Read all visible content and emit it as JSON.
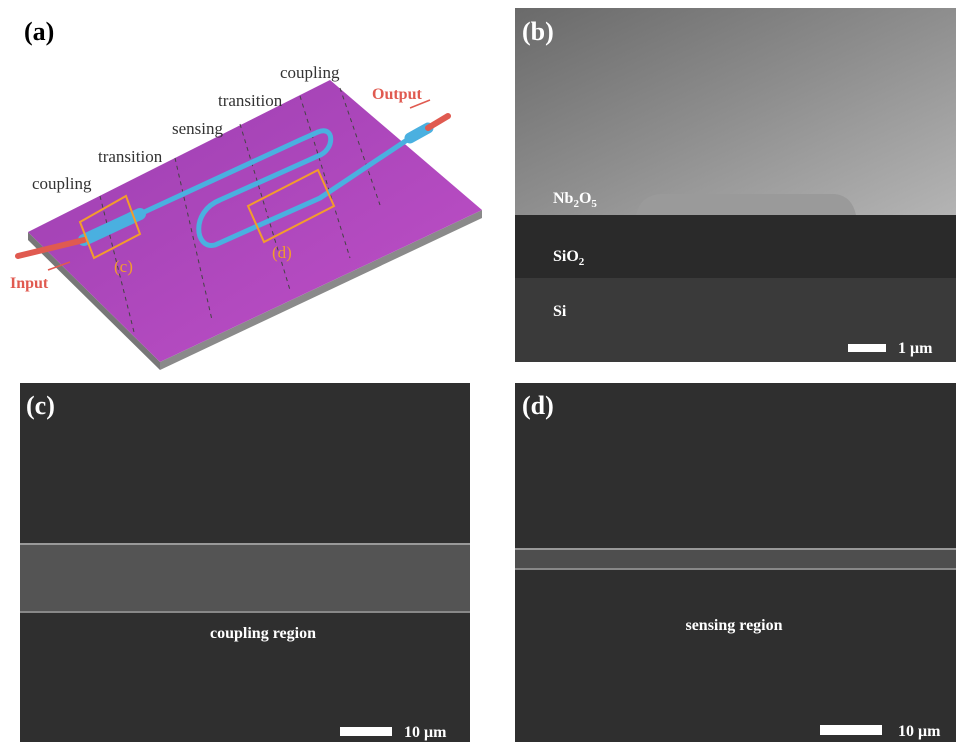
{
  "panels": {
    "a": {
      "label": "(a)",
      "regions": [
        "coupling",
        "transition",
        "sensing",
        "transition",
        "coupling"
      ],
      "output": "Output",
      "input": "Input",
      "box_c": "(c)",
      "box_d": "(d)"
    },
    "b": {
      "label": "(b)",
      "layers": [
        [
          {
            "text": "Nb"
          },
          {
            "text": "2",
            "sub": true
          },
          {
            "text": "O"
          },
          {
            "text": "5",
            "sub": true
          }
        ],
        [
          {
            "text": "SiO"
          },
          {
            "text": "2",
            "sub": true
          }
        ],
        [
          {
            "text": "Si"
          }
        ]
      ],
      "scale": "1 μm"
    },
    "c": {
      "label": "(c)",
      "caption": "coupling region",
      "scale": "10 μm"
    },
    "d": {
      "label": "(d)",
      "caption": "sensing region",
      "scale": "10 μm"
    }
  }
}
